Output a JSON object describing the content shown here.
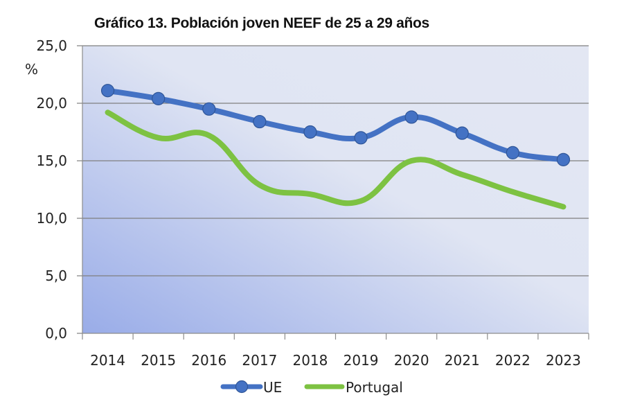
{
  "chart_data": {
    "type": "line",
    "title": "Gráfico 13. Población joven NEEF de 25 a 29 años",
    "xlabel": "",
    "ylabel": "%",
    "ylim": [
      0,
      25
    ],
    "yticks": [
      0,
      5,
      10,
      15,
      20,
      25
    ],
    "ytick_labels": [
      "0,0",
      "5,0",
      "10,0",
      "15,0",
      "20,0",
      "25,0"
    ],
    "categories": [
      "2014",
      "2015",
      "2016",
      "2017",
      "2018",
      "2019",
      "2020",
      "2021",
      "2022",
      "2023"
    ],
    "grid": true,
    "legend_position": "bottom",
    "series": [
      {
        "name": "UE",
        "color": "#4472C4",
        "markers": true,
        "smooth": true,
        "values": [
          21.1,
          20.4,
          19.5,
          18.4,
          17.5,
          17.0,
          18.8,
          17.4,
          15.7,
          15.1
        ]
      },
      {
        "name": "Portugal",
        "color": "#7DC242",
        "markers": false,
        "smooth": true,
        "values": [
          19.2,
          17.0,
          17.2,
          12.9,
          12.1,
          11.5,
          15.0,
          13.8,
          12.3,
          11.0
        ]
      }
    ],
    "background_gradient": [
      "#E3E7F3",
      "#99ACE8"
    ]
  }
}
